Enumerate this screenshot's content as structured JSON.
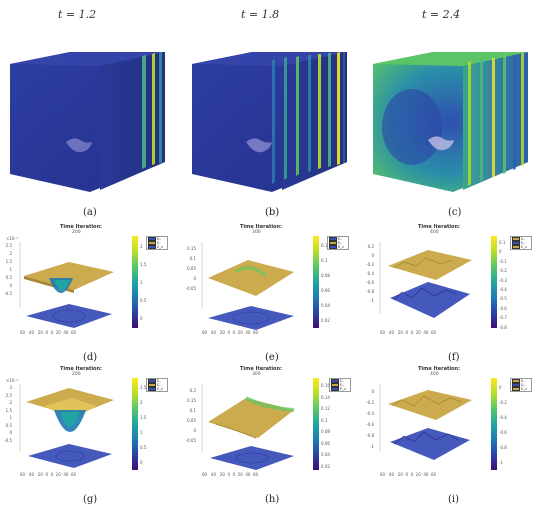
{
  "top_row": {
    "time_labels": [
      "t = 1.2",
      "t = 1.8",
      "t = 2.4"
    ],
    "captions": [
      "(a)",
      "(b)",
      "(c)"
    ]
  },
  "row2": {
    "captions": [
      "(d)",
      "(e)",
      "(f)"
    ],
    "plots": [
      {
        "title": "Time Iteration:",
        "iteration": "200",
        "scale": "×10⁻³",
        "cb_ticks": [
          "2",
          "1.5",
          "1",
          "0.5",
          "0"
        ],
        "z_ticks": [
          "2.5",
          "2",
          "1.5",
          "1",
          "0.5",
          "0",
          "-0.5"
        ],
        "legend": [
          "Eₓ",
          "Eᵧ",
          "E_z"
        ]
      },
      {
        "title": "Time Iteration:",
        "iteration": "300",
        "scale": "",
        "cb_ticks": [
          "0.12",
          "0.1",
          "0.08",
          "0.06",
          "0.04",
          "0.02"
        ],
        "z_ticks": [
          "0.15",
          "0.1",
          "0.05",
          "0",
          "-0.05"
        ],
        "legend": [
          "Eₓ",
          "Eᵧ",
          "E_z"
        ]
      },
      {
        "title": "Time Iteration:",
        "iteration": "400",
        "scale": "",
        "cb_ticks": [
          "0.1",
          "0",
          "-0.1",
          "-0.2",
          "-0.3",
          "-0.4",
          "-0.5",
          "-0.6",
          "-0.7",
          "-0.8"
        ],
        "z_ticks": [
          "0.2",
          "0",
          "-0.2",
          "-0.4",
          "-0.6",
          "-0.8",
          "-1"
        ],
        "legend": [
          "Eₓ",
          "Eᵧ",
          "E_z"
        ]
      }
    ]
  },
  "row3": {
    "captions": [
      "(g)",
      "(h)",
      "(i)"
    ],
    "plots": [
      {
        "title": "Time Iteration:",
        "iteration": "200",
        "scale": "×10⁻³",
        "cb_ticks": [
          "2.5",
          "2",
          "1.5",
          "1",
          "0.5",
          "0"
        ],
        "z_ticks": [
          "3",
          "2.5",
          "2",
          "1.5",
          "1",
          "0.5",
          "0",
          "-0.5"
        ],
        "legend": [
          "Eₓ",
          "Eᵧ",
          "E_z"
        ]
      },
      {
        "title": "Time Iteration:",
        "iteration": "300",
        "scale": "",
        "cb_ticks": [
          "0.16",
          "0.14",
          "0.12",
          "0.1",
          "0.08",
          "0.06",
          "0.04",
          "0.02"
        ],
        "z_ticks": [
          "0.2",
          "0.15",
          "0.1",
          "0.05",
          "0",
          "-0.05"
        ],
        "legend": [
          "Eₓ",
          "Eᵧ",
          "E_z"
        ]
      },
      {
        "title": "Time Iteration:",
        "iteration": "400",
        "scale": "",
        "cb_ticks": [
          "0",
          "-0.2",
          "-0.4",
          "-0.6",
          "-0.8",
          "-1"
        ],
        "z_ticks": [
          "0",
          "-0.2",
          "-0.4",
          "-0.6",
          "-0.8",
          "-1"
        ],
        "legend": [
          "Eₓ",
          "Eᵧ",
          "E_z"
        ]
      }
    ]
  },
  "axis_ticks": {
    "x": [
      "0",
      "20",
      "40",
      "60"
    ],
    "y": [
      "60",
      "40",
      "20",
      "0"
    ]
  },
  "colors": {
    "cube_blue": "#2b3a9e",
    "slab_green": "#5ec962",
    "slab_yellow": "#d8e219",
    "surface_gold": "#c9a645",
    "surface_blue": "#3b4fb8"
  }
}
